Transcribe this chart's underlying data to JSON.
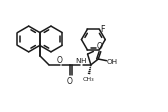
{
  "bg_color": "#ffffff",
  "line_color": "#1a1a1a",
  "line_width": 1.1,
  "figsize": [
    1.68,
    1.13
  ],
  "dpi": 100,
  "xlim": [
    0,
    10
  ],
  "ylim": [
    0,
    6.5
  ]
}
